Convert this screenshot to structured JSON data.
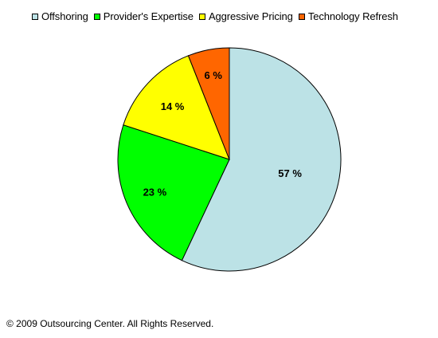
{
  "chart_data": {
    "type": "pie",
    "categories": [
      "Offshoring",
      "Provider's Expertise",
      "Aggressive Pricing",
      "Technology Refresh"
    ],
    "values": [
      57,
      23,
      14,
      6
    ],
    "data_labels": [
      "57 %",
      "23 %",
      "14 %",
      "6 %"
    ],
    "colors": [
      "#BCE2E6",
      "#00FF00",
      "#FFFF00",
      "#FF6600"
    ],
    "legend_position": "top",
    "direction": "clockwise from 12 o'clock",
    "title": "",
    "unit": "%"
  },
  "footer": {
    "copyright": "© 2009 Outsourcing Center. All Rights Reserved."
  }
}
